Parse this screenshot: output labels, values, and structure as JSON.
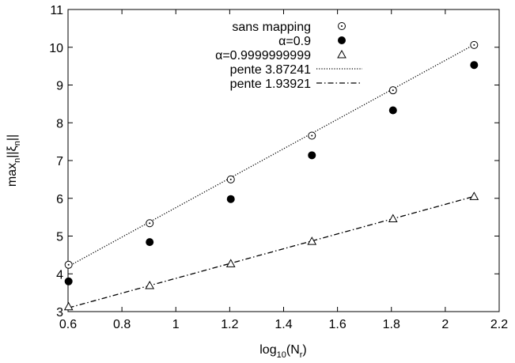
{
  "chart_data": {
    "type": "scatter",
    "xlabel": {
      "main": "log",
      "sub": "10",
      "paren_open": "(N",
      "paren_sub": "r",
      "paren_close": ")"
    },
    "ylabel": {
      "pre": "max",
      "sub1": "n",
      "mid": "||ξ",
      "sub2": "n",
      "post": "||"
    },
    "xlim": [
      0.6,
      2.2
    ],
    "ylim": [
      3,
      11
    ],
    "xticks": [
      "0.6",
      "0.8",
      "1",
      "1.2",
      "1.4",
      "1.6",
      "1.8",
      "2",
      "2.2"
    ],
    "yticks": [
      "3",
      "4",
      "5",
      "6",
      "7",
      "8",
      "9",
      "10",
      "11"
    ],
    "grid": false,
    "legend_position": "top-right",
    "series": [
      {
        "name": "sans mapping",
        "marker": "open-circle",
        "x": [
          0.602,
          0.903,
          1.204,
          1.505,
          1.806,
          2.107
        ],
        "y": [
          4.24,
          5.34,
          6.5,
          7.66,
          8.86,
          10.06
        ]
      },
      {
        "name": "α=0.9",
        "marker": "filled-circle",
        "x": [
          0.602,
          0.903,
          1.204,
          1.505,
          1.806,
          2.107
        ],
        "y": [
          3.8,
          4.84,
          5.98,
          7.14,
          8.33,
          9.53
        ]
      },
      {
        "name": "α=0.9999999999",
        "marker": "open-triangle",
        "x": [
          0.602,
          0.903,
          1.204,
          1.505,
          1.806,
          2.107
        ],
        "y": [
          3.13,
          3.69,
          4.27,
          4.86,
          5.46,
          6.05
        ]
      }
    ],
    "fit_lines": [
      {
        "name": "pente 3.87241",
        "style": "dotted",
        "x": [
          0.602,
          2.107
        ],
        "y": [
          4.2,
          10.07
        ]
      },
      {
        "name": "pente 1.93921",
        "style": "dash-dot",
        "x": [
          0.602,
          2.107
        ],
        "y": [
          3.1,
          6.05
        ]
      }
    ]
  }
}
